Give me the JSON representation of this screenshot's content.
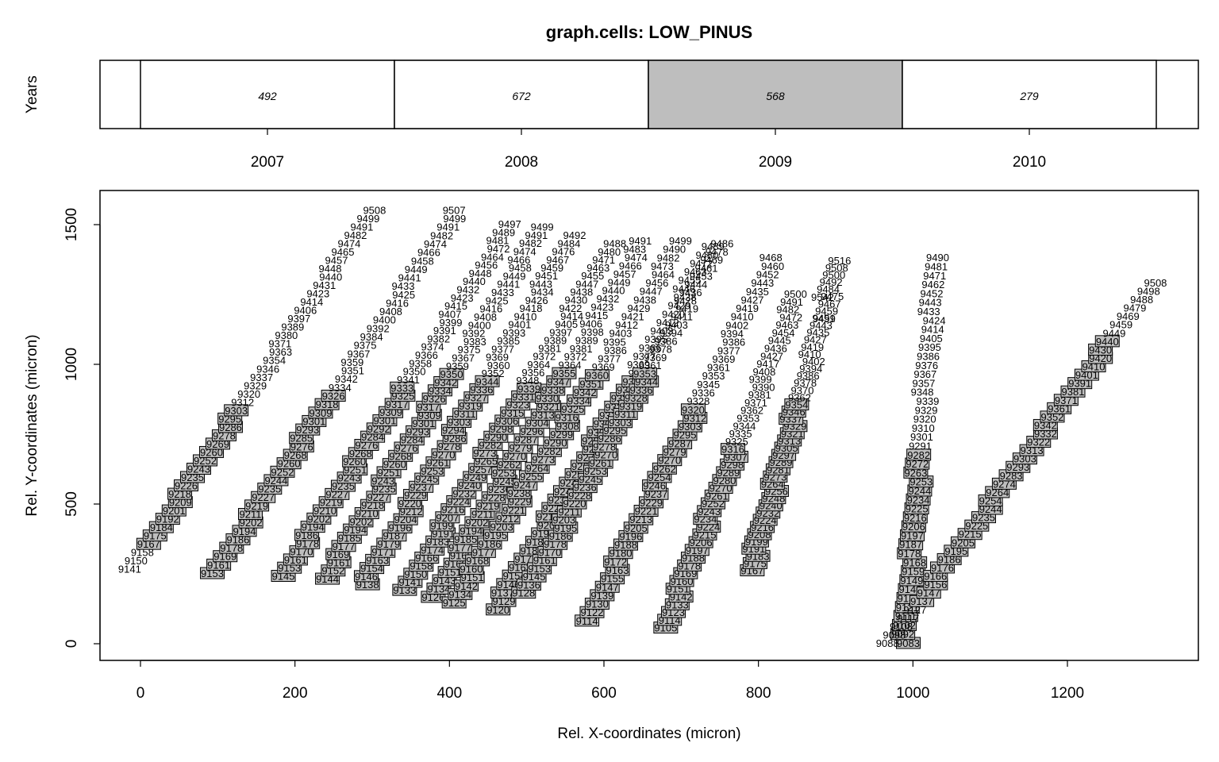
{
  "chart_data": [
    {
      "type": "bar",
      "title": "graph.cells: LOW_PINUS",
      "ylabel": "Years",
      "categories": [
        "2007",
        "2008",
        "2009",
        "2010"
      ],
      "values": [
        492,
        672,
        568,
        279
      ],
      "highlighted_category": "2009",
      "highlight_color": "#bebebe"
    },
    {
      "type": "scatter",
      "xlabel": "Rel. X-coordinates (micron)",
      "ylabel": "Rel. Y-coordinates (micron)",
      "xlim": [
        -120,
        1360
      ],
      "ylim": [
        -60,
        1630
      ],
      "xticks": [
        0,
        200,
        400,
        600,
        800,
        1000,
        1200
      ],
      "yticks": [
        0,
        500,
        1000,
        1500
      ],
      "grid": false,
      "label_box_color": "#bebebe",
      "files": [
        {
          "x0": -10,
          "y0": 265,
          "x1": 300,
          "y1": 1550,
          "id0": 9141,
          "id1": 9508,
          "boxed_from": 0.05,
          "boxed_to": 0.45
        },
        {
          "x0": 95,
          "y0": 250,
          "x1": 410,
          "y1": 1550,
          "id0": 9153,
          "id1": 9507,
          "boxed_from": 0.0,
          "boxed_to": 0.5
        },
        {
          "x0": 185,
          "y0": 240,
          "x1": 480,
          "y1": 1500,
          "id0": 9145,
          "id1": 9497,
          "boxed_from": 0.0,
          "boxed_to": 0.55
        },
        {
          "x0": 240,
          "y0": 230,
          "x1": 520,
          "y1": 1490,
          "id0": 9144,
          "id1": 9499,
          "boxed_from": 0.0,
          "boxed_to": 0.6
        },
        {
          "x0": 290,
          "y0": 210,
          "x1": 560,
          "y1": 1460,
          "id0": 9138,
          "id1": 9492,
          "boxed_from": 0.0,
          "boxed_to": 0.6
        },
        {
          "x0": 345,
          "y0": 190,
          "x1": 610,
          "y1": 1430,
          "id0": 9133,
          "id1": 9488,
          "boxed_from": 0.0,
          "boxed_to": 0.6
        },
        {
          "x0": 380,
          "y0": 165,
          "x1": 650,
          "y1": 1440,
          "id0": 9126,
          "id1": 9491,
          "boxed_from": 0.0,
          "boxed_to": 0.65
        },
        {
          "x0": 405,
          "y0": 145,
          "x1": 700,
          "y1": 1440,
          "id0": 9125,
          "id1": 9499,
          "boxed_from": 0.0,
          "boxed_to": 0.65
        },
        {
          "x0": 460,
          "y0": 120,
          "x1": 740,
          "y1": 1420,
          "id0": 9120,
          "id1": 9489,
          "boxed_from": 0.0,
          "boxed_to": 0.65
        },
        {
          "x0": 500,
          "y0": 180,
          "x1": 750,
          "y1": 1430,
          "id0": 9128,
          "id1": 9486,
          "boxed_from": 0.0,
          "boxed_to": 0.65
        },
        {
          "x0": 580,
          "y0": 80,
          "x1": 820,
          "y1": 1380,
          "id0": 9114,
          "id1": 9468,
          "boxed_from": 0.0,
          "boxed_to": 0.6
        },
        {
          "x0": 680,
          "y0": 55,
          "x1": 850,
          "y1": 1250,
          "id0": 9105,
          "id1": 9500,
          "boxed_from": 0.0,
          "boxed_to": 0.55
        },
        {
          "x0": 790,
          "y0": 260,
          "x1": 905,
          "y1": 1370,
          "id0": 9167,
          "id1": 9516,
          "boxed_from": 0.0,
          "boxed_to": 0.55
        },
        {
          "x0": 990,
          "y0": 0,
          "x1": 1030,
          "y1": 1380,
          "id0": 9083,
          "id1": 9490,
          "boxed_from": 0.0,
          "boxed_to": 0.5
        },
        {
          "x0": 970,
          "y0": 0,
          "x1": 1310,
          "y1": 1290,
          "id0": 9088,
          "id1": 9508,
          "boxed_from": 0.1,
          "boxed_to": 0.85
        }
      ],
      "labels_per_file": 44,
      "annotations": [
        {
          "text": "9542",
          "x": 883,
          "y": 1238
        },
        {
          "text": "9499",
          "x": 885,
          "y": 1162
        }
      ]
    }
  ]
}
